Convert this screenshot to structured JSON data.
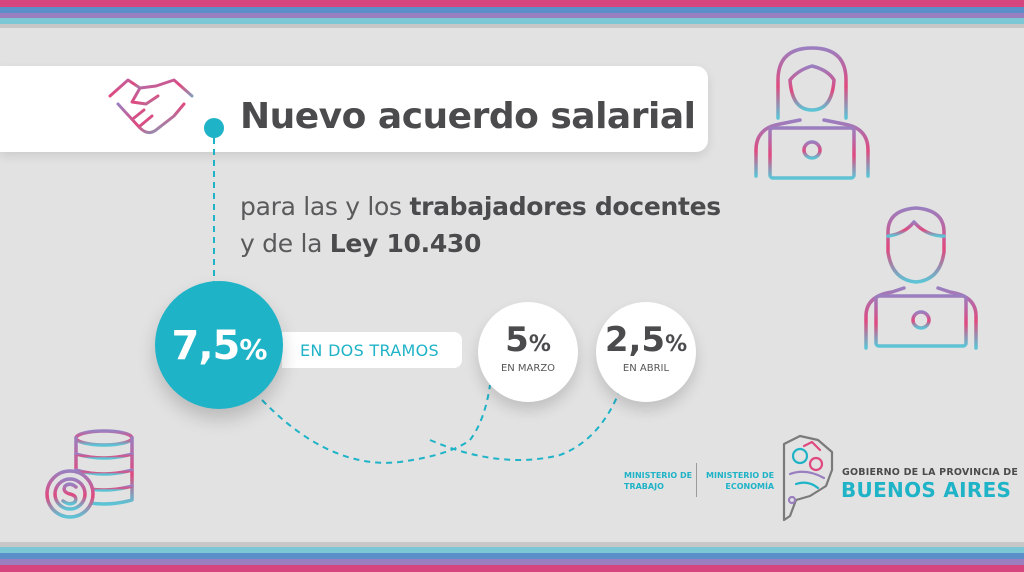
{
  "headline": {
    "title": "Nuevo acuerdo salarial",
    "subtitle_line1_regular": "para las y los ",
    "subtitle_line1_bold": "trabajadores docentes",
    "subtitle_line2_regular": "y de la ",
    "subtitle_line2_bold": "Ley 10.430"
  },
  "raise": {
    "total_value": "7,5",
    "total_unit": "%",
    "tramos_label": "EN DOS TRAMOS"
  },
  "tramos": [
    {
      "value": "5",
      "unit": "%",
      "label": "EN MARZO"
    },
    {
      "value": "2,5",
      "unit": "%",
      "label": "EN ABRIL"
    }
  ],
  "footer": {
    "ministry_trabajo_line1": "MINISTERIO DE",
    "ministry_trabajo_line2": "TRABAJO",
    "ministry_economia_line1": "MINISTERIO DE",
    "ministry_economia_line2": "ECONOMÍA",
    "gov_line1": "GOBIERNO DE LA PROVINCIA DE",
    "gov_line2": "BUENOS AIRES"
  },
  "icons": {
    "handshake": "handshake-icon",
    "woman_laptop": "woman-laptop-icon",
    "man_laptop": "man-laptop-icon",
    "coins": "coins-dollar-icon",
    "logo": "province-logo-icon"
  },
  "colors": {
    "accent_cyan": "#1fb3c7",
    "accent_magenta": "#e0497f",
    "stripe_pink": "#d6457e",
    "stripe_blue": "#5b8fc9",
    "text_dark": "#4b4b4d",
    "background": "#e2e2e2"
  }
}
